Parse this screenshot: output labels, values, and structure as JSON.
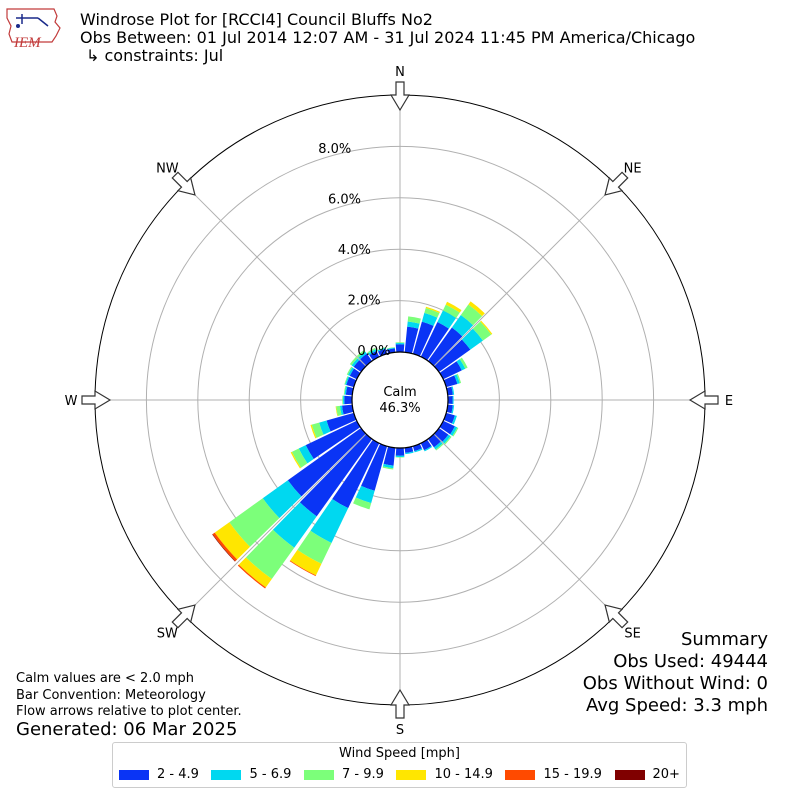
{
  "header": {
    "title": "Windrose Plot for [RCCI4] Council Bluffs No2",
    "subtitle": "Obs Between: 01 Jul 2014 12:07 AM - 31 Jul 2024 11:45 PM America/Chicago",
    "constraints": "↳ constraints: Jul"
  },
  "logo": {
    "text": "IEM",
    "icon": "iowa-state-logo-icon"
  },
  "notes": {
    "calm": "Calm values are < 2.0 mph",
    "convention": "Bar Convention: Meteorology",
    "flow": "Flow arrows relative to plot center."
  },
  "generated": "Generated: 06 Mar 2025",
  "summary": {
    "title": "Summary",
    "obs_used": "Obs Used: 49444",
    "obs_without_wind": "Obs Without Wind: 0",
    "avg_speed": "Avg Speed: 3.3 mph"
  },
  "legend": {
    "title": "Wind Speed [mph]",
    "items": [
      {
        "label": "2 - 4.9",
        "color": "#0a34f5"
      },
      {
        "label": "5 - 6.9",
        "color": "#00d8f0"
      },
      {
        "label": "7 - 9.9",
        "color": "#7cff7a"
      },
      {
        "label": "10 - 14.9",
        "color": "#ffe600"
      },
      {
        "label": "15 - 19.9",
        "color": "#ff4a00"
      },
      {
        "label": "20+",
        "color": "#800000"
      }
    ]
  },
  "chart_data": {
    "type": "windrose",
    "calm": {
      "label": "Calm",
      "value": "46.3%"
    },
    "radial_max": 10.0,
    "radial_ticks": [
      {
        "value": 0.0,
        "label": "0.0%"
      },
      {
        "value": 2.0,
        "label": "2.0%"
      },
      {
        "value": 4.0,
        "label": "4.0%"
      },
      {
        "value": 6.0,
        "label": "6.0%"
      },
      {
        "value": 8.0,
        "label": "8.0%"
      }
    ],
    "directions": [
      {
        "label": "N",
        "angle": 0
      },
      {
        "label": "NE",
        "angle": 45
      },
      {
        "label": "E",
        "angle": 90
      },
      {
        "label": "SE",
        "angle": 135
      },
      {
        "label": "S",
        "angle": 180
      },
      {
        "label": "SW",
        "angle": 225
      },
      {
        "label": "W",
        "angle": 270
      },
      {
        "label": "NW",
        "angle": 315
      }
    ],
    "speed_bins": [
      "2 - 4.9",
      "5 - 6.9",
      "7 - 9.9",
      "10 - 14.9",
      "15 - 19.9",
      "20+"
    ],
    "bin_colors": [
      "#0a34f5",
      "#00d8f0",
      "#7cff7a",
      "#ffe600",
      "#ff4a00",
      "#800000"
    ],
    "sectors": [
      {
        "dir": 0,
        "values": [
          0.3,
          0.05,
          0.03,
          0,
          0,
          0
        ]
      },
      {
        "dir": 10,
        "values": [
          1.0,
          0.2,
          0.2,
          0,
          0,
          0
        ]
      },
      {
        "dir": 20,
        "values": [
          1.3,
          0.35,
          0.2,
          0.05,
          0,
          0
        ]
      },
      {
        "dir": 30,
        "values": [
          1.5,
          0.5,
          0.25,
          0.12,
          0,
          0
        ]
      },
      {
        "dir": 40,
        "values": [
          1.6,
          0.6,
          0.5,
          0.15,
          0,
          0
        ]
      },
      {
        "dir": 50,
        "values": [
          1.5,
          0.6,
          0.4,
          0.05,
          0,
          0
        ]
      },
      {
        "dir": 60,
        "values": [
          0.8,
          0.15,
          0.1,
          0,
          0,
          0
        ]
      },
      {
        "dir": 70,
        "values": [
          0.45,
          0.1,
          0.05,
          0,
          0,
          0
        ]
      },
      {
        "dir": 80,
        "values": [
          0.2,
          0.05,
          0,
          0,
          0,
          0
        ]
      },
      {
        "dir": 90,
        "values": [
          0.18,
          0.04,
          0,
          0,
          0,
          0
        ]
      },
      {
        "dir": 100,
        "values": [
          0.2,
          0.05,
          0,
          0,
          0,
          0
        ]
      },
      {
        "dir": 110,
        "values": [
          0.35,
          0.08,
          0,
          0,
          0,
          0
        ]
      },
      {
        "dir": 120,
        "values": [
          0.5,
          0.1,
          0.05,
          0,
          0,
          0
        ]
      },
      {
        "dir": 130,
        "values": [
          0.45,
          0.1,
          0.05,
          0,
          0,
          0
        ]
      },
      {
        "dir": 140,
        "values": [
          0.4,
          0.1,
          0.05,
          0,
          0,
          0
        ]
      },
      {
        "dir": 150,
        "values": [
          0.3,
          0.05,
          0,
          0,
          0,
          0
        ]
      },
      {
        "dir": 160,
        "values": [
          0.2,
          0.05,
          0,
          0,
          0,
          0
        ]
      },
      {
        "dir": 170,
        "values": [
          0.2,
          0.05,
          0,
          0,
          0,
          0
        ]
      },
      {
        "dir": 180,
        "values": [
          0.3,
          0.05,
          0.02,
          0,
          0,
          0
        ]
      },
      {
        "dir": 190,
        "values": [
          0.7,
          0.1,
          0.05,
          0,
          0,
          0
        ]
      },
      {
        "dir": 200,
        "values": [
          1.8,
          0.5,
          0.25,
          0,
          0,
          0
        ]
      },
      {
        "dir": 210,
        "values": [
          2.8,
          1.5,
          0.9,
          0.5,
          0.03,
          0
        ]
      },
      {
        "dir": 220,
        "values": [
          3.7,
          1.5,
          1.5,
          0.4,
          0.05,
          0
        ]
      },
      {
        "dir": 230,
        "values": [
          3.5,
          1.2,
          1.6,
          0.7,
          0.1,
          0.02
        ]
      },
      {
        "dir": 240,
        "values": [
          2.2,
          0.3,
          0.3,
          0.05,
          0,
          0
        ]
      },
      {
        "dir": 250,
        "values": [
          1.1,
          0.3,
          0.3,
          0.05,
          0,
          0
        ]
      },
      {
        "dir": 260,
        "values": [
          0.4,
          0.08,
          0.15,
          0.02,
          0,
          0
        ]
      },
      {
        "dir": 270,
        "values": [
          0.3,
          0.05,
          0.03,
          0,
          0,
          0
        ]
      },
      {
        "dir": 280,
        "values": [
          0.25,
          0.05,
          0.03,
          0,
          0,
          0
        ]
      },
      {
        "dir": 290,
        "values": [
          0.3,
          0.05,
          0.03,
          0,
          0,
          0
        ]
      },
      {
        "dir": 300,
        "values": [
          0.3,
          0.08,
          0.05,
          0,
          0,
          0
        ]
      },
      {
        "dir": 310,
        "values": [
          0.35,
          0.1,
          0.08,
          0,
          0,
          0
        ]
      },
      {
        "dir": 320,
        "values": [
          0.35,
          0.1,
          0.08,
          0,
          0,
          0
        ]
      },
      {
        "dir": 330,
        "values": [
          0.25,
          0.08,
          0.05,
          0,
          0,
          0
        ]
      },
      {
        "dir": 340,
        "values": [
          0.2,
          0.05,
          0.02,
          0,
          0,
          0
        ]
      },
      {
        "dir": 350,
        "values": [
          0.15,
          0.03,
          0.02,
          0,
          0,
          0
        ]
      }
    ]
  }
}
